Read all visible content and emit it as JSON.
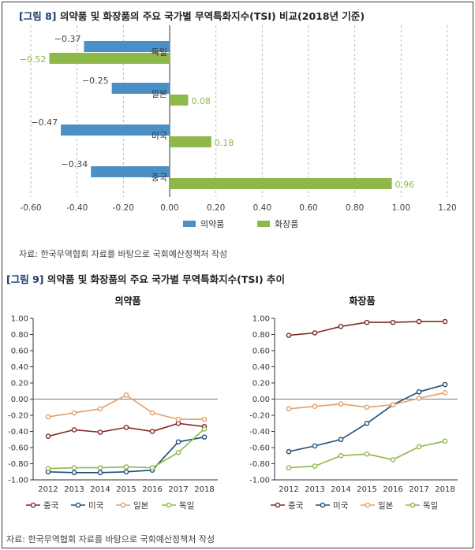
{
  "fig8": {
    "num": "[그림 8]",
    "title": "의약품 및 화장품의 주요 국가별 무역특화지수(TSI) 비교(2018년 기준)",
    "source": "자료: 한국무역협회 자료를 바탕으로 국회예산정책처 작성"
  },
  "fig9": {
    "num": "[그림 9]",
    "title": "의약품 및 화장품의 주요 국가별 무역특화지수(TSI) 추이",
    "source": "자료: 한국무역협회 자료를 바탕으로 국회예산정책처 작성"
  },
  "colors": {
    "pharma": "#4a90c6",
    "cosmetic": "#8fb84a",
    "중국": "#7f2a2a",
    "미국": "#1d4f7a",
    "일본": "#e0a06a",
    "독일": "#8fb84a"
  },
  "chart_data": [
    {
      "type": "bar",
      "orientation": "horizontal",
      "categories": [
        "독일",
        "일본",
        "미국",
        "중국"
      ],
      "series": [
        {
          "name": "의약품",
          "values": [
            -0.37,
            -0.25,
            -0.47,
            -0.34
          ]
        },
        {
          "name": "화장품",
          "values": [
            -0.52,
            0.08,
            0.18,
            0.96
          ]
        }
      ],
      "data_labels": [
        [
          "−0.37",
          "−0.25",
          "−0.47",
          "−0.34"
        ],
        [
          "−0.52",
          "0.08",
          "0.18",
          "0.96"
        ]
      ],
      "xlim": [
        -0.6,
        1.2
      ],
      "xticks": [
        "-0.60",
        "-0.40",
        "-0.20",
        "0.00",
        "0.20",
        "0.40",
        "0.60",
        "0.80",
        "1.00",
        "1.20"
      ],
      "grid": "vertical-dashed",
      "legend": "bottom"
    },
    {
      "type": "line",
      "title": "의약품",
      "x": [
        "2012",
        "2013",
        "2014",
        "2015",
        "2016",
        "2017",
        "2018"
      ],
      "series": [
        {
          "name": "중국",
          "values": [
            -0.46,
            -0.38,
            -0.41,
            -0.35,
            -0.4,
            -0.3,
            -0.34
          ]
        },
        {
          "name": "미국",
          "values": [
            -0.9,
            -0.91,
            -0.91,
            -0.9,
            -0.88,
            -0.53,
            -0.47
          ]
        },
        {
          "name": "일본",
          "values": [
            -0.22,
            -0.17,
            -0.12,
            0.05,
            -0.17,
            -0.25,
            -0.25
          ]
        },
        {
          "name": "독일",
          "values": [
            -0.86,
            -0.85,
            -0.85,
            -0.84,
            -0.85,
            -0.66,
            -0.37
          ]
        }
      ],
      "ylim": [
        -1.0,
        1.0
      ],
      "yticks": [
        "1.00",
        "0.80",
        "0.60",
        "0.40",
        "0.20",
        "0.00",
        "-0.20",
        "-0.40",
        "-0.60",
        "-0.80",
        "-1.00"
      ],
      "legend": "bottom"
    },
    {
      "type": "line",
      "title": "화장품",
      "x": [
        "2012",
        "2013",
        "2014",
        "2015",
        "2016",
        "2017",
        "2018"
      ],
      "series": [
        {
          "name": "중국",
          "values": [
            0.79,
            0.82,
            0.9,
            0.95,
            0.95,
            0.96,
            0.96
          ]
        },
        {
          "name": "미국",
          "values": [
            -0.65,
            -0.58,
            -0.5,
            -0.3,
            -0.07,
            0.09,
            0.18
          ]
        },
        {
          "name": "일본",
          "values": [
            -0.12,
            -0.09,
            -0.06,
            -0.1,
            -0.07,
            0.01,
            0.08
          ]
        },
        {
          "name": "독일",
          "values": [
            -0.85,
            -0.83,
            -0.7,
            -0.68,
            -0.75,
            -0.59,
            -0.52
          ]
        }
      ],
      "ylim": [
        -1.0,
        1.0
      ],
      "yticks": [
        "1.00",
        "0.80",
        "0.60",
        "0.40",
        "0.20",
        "0.00",
        "-0.20",
        "-0.40",
        "-0.60",
        "-0.80",
        "-1.00"
      ],
      "legend": "bottom"
    }
  ]
}
